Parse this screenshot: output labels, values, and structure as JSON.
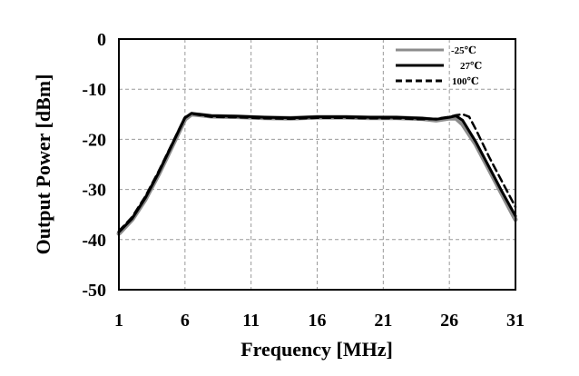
{
  "chart_data": {
    "type": "line",
    "title": "",
    "xlabel": "Frequency [MHz]",
    "ylabel": "Output Power [dBm]",
    "xlim": [
      1,
      31
    ],
    "ylim": [
      -50,
      0
    ],
    "xticks": [
      1,
      6,
      11,
      16,
      21,
      26,
      31
    ],
    "yticks": [
      0,
      -10,
      -20,
      -30,
      -40,
      -50
    ],
    "xtick_labels": [
      "1",
      "6",
      "11",
      "16",
      "21",
      "26",
      "31"
    ],
    "ytick_labels": [
      "0",
      "-10",
      "-20",
      "-30",
      "-40",
      "-50"
    ],
    "grid": true,
    "legend_position": "top-right",
    "series": [
      {
        "name": "-25℃",
        "color": "#8c8c8c",
        "style": "solid",
        "x": [
          1,
          2,
          3,
          4,
          5,
          6,
          6.5,
          7,
          8,
          10,
          12,
          14,
          16,
          18,
          20,
          22,
          24,
          25,
          26,
          26.5,
          27,
          28,
          29,
          30,
          31
        ],
        "y": [
          -38.8,
          -36,
          -32,
          -27,
          -21.5,
          -16,
          -15,
          -15.1,
          -15.4,
          -15.5,
          -15.7,
          -15.8,
          -15.6,
          -15.6,
          -15.7,
          -15.7,
          -15.9,
          -16.2,
          -15.8,
          -15.8,
          -17,
          -21,
          -26,
          -31,
          -36
        ]
      },
      {
        "name": "27℃",
        "color": "#000000",
        "style": "solid",
        "x": [
          1,
          2,
          3,
          4,
          5,
          6,
          6.5,
          7,
          8,
          10,
          12,
          14,
          16,
          18,
          20,
          22,
          24,
          25,
          26,
          26.5,
          27,
          28,
          29,
          30,
          31
        ],
        "y": [
          -38.5,
          -35.8,
          -31.7,
          -26.7,
          -21.2,
          -15.7,
          -14.8,
          -15,
          -15.3,
          -15.4,
          -15.6,
          -15.7,
          -15.5,
          -15.5,
          -15.6,
          -15.6,
          -15.8,
          -16,
          -15.6,
          -15.3,
          -16.2,
          -20.5,
          -25.5,
          -30.5,
          -35.3
        ]
      },
      {
        "name": "100℃",
        "color": "#000000",
        "style": "dashed",
        "x": [
          1,
          2,
          3,
          4,
          5,
          6,
          6.5,
          7,
          8,
          10,
          12,
          14,
          16,
          18,
          20,
          22,
          24,
          25,
          26,
          26.5,
          27,
          27.5,
          28,
          29,
          30,
          31
        ],
        "y": [
          -38.3,
          -35.5,
          -31.4,
          -26.4,
          -21,
          -15.6,
          -14.9,
          -15.1,
          -15.5,
          -15.6,
          -15.8,
          -15.9,
          -15.7,
          -15.7,
          -15.8,
          -15.8,
          -16,
          -15.9,
          -15.5,
          -15.2,
          -15,
          -15.5,
          -18,
          -23.5,
          -28.5,
          -33.5
        ]
      }
    ]
  }
}
